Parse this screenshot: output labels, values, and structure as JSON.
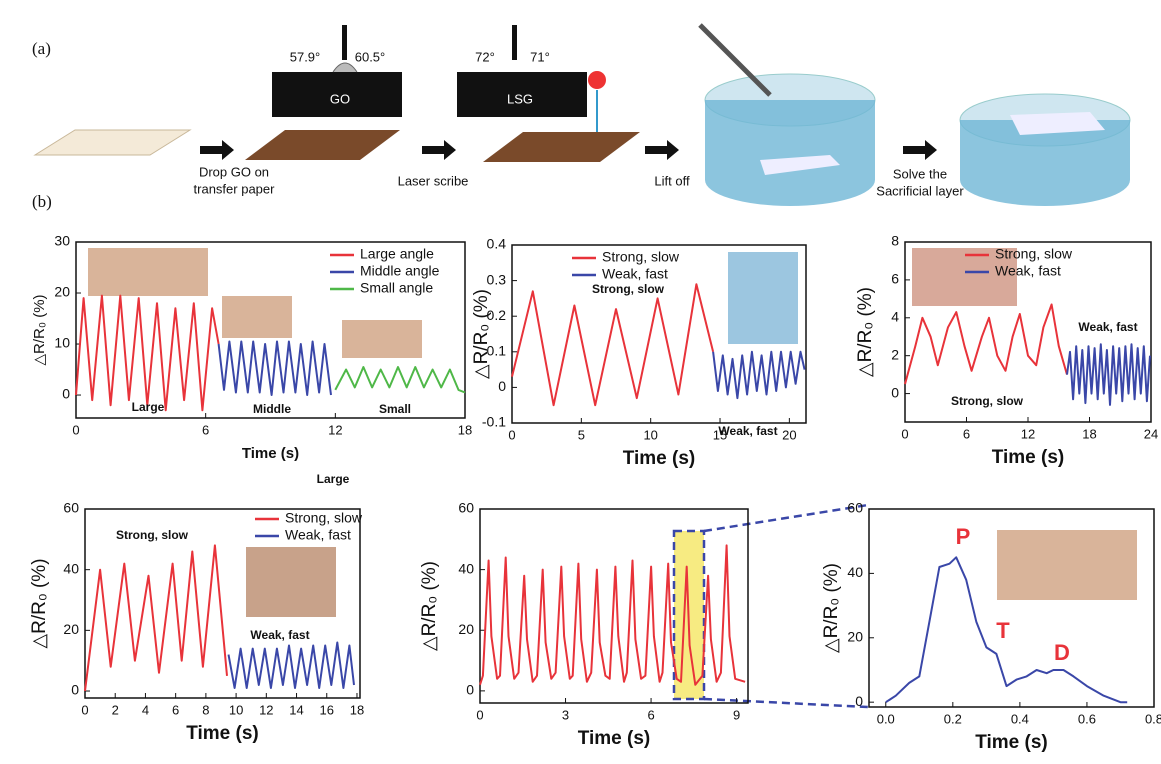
{
  "panel_a": {
    "label": "(a)",
    "angle_left_1": "57.9°",
    "angle_right_1": "60.5°",
    "block_1": "GO",
    "angle_left_2": "72°",
    "angle_right_2": "71°",
    "block_2": "LSG",
    "steps": [
      "Drop GO on",
      "transfer paper",
      "Laser scribe",
      "Lift off",
      "Solve the",
      "Sacrificial layer"
    ]
  },
  "panel_b": {
    "label": "(b)"
  },
  "chart_data": [
    {
      "type": "line",
      "ylabel": "△R/R₀ (%)",
      "xlabel": "Time (s)",
      "xlim": [
        0,
        18
      ],
      "xticks": [
        0,
        6,
        12,
        18
      ],
      "ylim": [
        -4.5,
        30
      ],
      "yticks": [
        0,
        10,
        20,
        30
      ],
      "annotations": [
        "Large",
        "Middle",
        "Small",
        "Large"
      ],
      "series": [
        {
          "name": "Large angle",
          "color": "#e8333a",
          "x": [
            0,
            0.35,
            0.75,
            1.2,
            1.6,
            2.05,
            2.45,
            2.9,
            3.3,
            3.75,
            4.15,
            4.6,
            5.0,
            5.45,
            5.85,
            6.3,
            6.6
          ],
          "values": [
            0,
            19,
            -1,
            19.5,
            -2,
            19.5,
            -1,
            19,
            -2,
            18,
            -3,
            17,
            -1,
            18,
            -3,
            17,
            10
          ]
        },
        {
          "name": "Middle angle",
          "color": "#3a47a8",
          "x": [
            6.6,
            6.85,
            7.1,
            7.4,
            7.65,
            7.95,
            8.2,
            8.5,
            8.75,
            9.05,
            9.3,
            9.6,
            9.85,
            10.15,
            10.4,
            10.7,
            10.95,
            11.25,
            11.5,
            11.8
          ],
          "values": [
            10,
            1,
            10.5,
            0.5,
            10.5,
            0.5,
            10.5,
            0.5,
            10,
            0,
            10.5,
            0.5,
            10.5,
            0.5,
            10,
            0,
            10.5,
            0.5,
            10,
            0
          ]
        },
        {
          "name": "Small angle",
          "color": "#4fb848",
          "x": [
            12,
            12.5,
            12.9,
            13.3,
            13.7,
            14.1,
            14.5,
            14.9,
            15.3,
            15.7,
            16.1,
            16.5,
            16.9,
            17.3,
            17.7,
            18
          ],
          "values": [
            1,
            5,
            1.5,
            5.5,
            1.5,
            5,
            1.5,
            5.5,
            1.5,
            5.5,
            1.5,
            5,
            1.5,
            5,
            1,
            0.5
          ]
        }
      ]
    },
    {
      "type": "line",
      "ylabel": "△R/R₀ (%)",
      "xlabel": "Time (s)",
      "xlim": [
        0,
        21.2
      ],
      "xticks": [
        0,
        5,
        10,
        15,
        20
      ],
      "ylim": [
        -0.1,
        0.4
      ],
      "yticks": [
        -0.1,
        0,
        0.1,
        0.2,
        0.3,
        0.4
      ],
      "annotations": [
        "Strong, slow",
        "Weak, fast"
      ],
      "series": [
        {
          "name": "Strong, slow",
          "color": "#e8333a",
          "x": [
            0,
            1.5,
            3,
            4.5,
            6,
            7.5,
            9,
            10.5,
            12,
            13.3,
            14.5
          ],
          "values": [
            0.03,
            0.27,
            -0.05,
            0.23,
            -0.05,
            0.22,
            -0.03,
            0.25,
            -0.02,
            0.29,
            0.1
          ]
        },
        {
          "name": "Weak, fast",
          "color": "#3a47a8",
          "x": [
            14.5,
            14.85,
            15.2,
            15.55,
            15.9,
            16.25,
            16.6,
            16.95,
            17.3,
            17.65,
            18.0,
            18.35,
            18.7,
            19.05,
            19.4,
            19.75,
            20.1,
            20.45,
            20.8,
            21.1
          ],
          "values": [
            0.1,
            -0.01,
            0.09,
            -0.02,
            0.08,
            -0.03,
            0.09,
            -0.02,
            0.1,
            -0.01,
            0.09,
            -0.02,
            0.1,
            -0.01,
            0.1,
            0.0,
            0.1,
            0.01,
            0.1,
            0.05
          ]
        }
      ]
    },
    {
      "type": "line",
      "ylabel": "△R/R₀ (%)",
      "xlabel": "Time (s)",
      "xlim": [
        0,
        24
      ],
      "xticks": [
        0,
        6,
        12,
        18,
        24
      ],
      "ylim": [
        -1.5,
        8
      ],
      "yticks": [
        0,
        2,
        4,
        6,
        8
      ],
      "annotations": [
        "Weak, fast",
        "Strong, slow"
      ],
      "series": [
        {
          "name": "Strong, slow",
          "color": "#e8333a",
          "x": [
            0,
            1,
            1.7,
            2.5,
            3.2,
            4.2,
            5,
            5.8,
            6.5,
            7.5,
            8.2,
            9,
            9.8,
            10.5,
            11.2,
            12,
            12.8,
            13.5,
            14.3,
            15,
            15.8
          ],
          "values": [
            0.5,
            2.5,
            4,
            3,
            1.5,
            3.5,
            4.3,
            2.5,
            1.2,
            3,
            4,
            2,
            1.2,
            3,
            4.2,
            2,
            1.5,
            3.5,
            4.7,
            2.5,
            1
          ]
        },
        {
          "name": "Weak, fast",
          "color": "#3a47a8",
          "x": [
            15.8,
            16.1,
            16.4,
            16.7,
            17,
            17.3,
            17.6,
            17.9,
            18.2,
            18.5,
            18.8,
            19.1,
            19.4,
            19.7,
            20,
            20.3,
            20.6,
            20.9,
            21.2,
            21.5,
            21.8,
            22.1,
            22.4,
            22.7,
            23,
            23.3,
            23.6,
            23.9
          ],
          "values": [
            1,
            2.2,
            -0.3,
            2.5,
            0,
            2.3,
            -0.5,
            2.5,
            0,
            2.4,
            -0.3,
            2.6,
            0,
            2.3,
            -0.6,
            2.5,
            0,
            2.4,
            -0.4,
            2.5,
            0,
            2.6,
            -0.3,
            2.4,
            0,
            2.5,
            -0.4,
            2
          ]
        }
      ]
    },
    {
      "type": "line",
      "ylabel": "△R/R₀ (%)",
      "xlabel": "Time (s)",
      "xlim": [
        0,
        18.2
      ],
      "xticks": [
        0,
        2,
        4,
        6,
        8,
        10,
        12,
        14,
        16,
        18
      ],
      "ylim": [
        -2.3,
        60
      ],
      "yticks": [
        0,
        20,
        40,
        60
      ],
      "annotations": [
        "Strong, slow",
        "Weak, fast"
      ],
      "series": [
        {
          "name": "Strong, slow",
          "color": "#e8333a",
          "x": [
            0,
            1,
            1.7,
            2.6,
            3.3,
            4.2,
            4.9,
            5.8,
            6.4,
            7.1,
            7.8,
            8.6,
            9.4
          ],
          "values": [
            0,
            40,
            8,
            42,
            10,
            38,
            6,
            42,
            10,
            46,
            8,
            48,
            5
          ]
        },
        {
          "name": "Weak, fast",
          "color": "#3a47a8",
          "x": [
            9.5,
            9.9,
            10.3,
            10.7,
            11.1,
            11.5,
            11.9,
            12.3,
            12.7,
            13.1,
            13.5,
            13.9,
            14.3,
            14.7,
            15.1,
            15.5,
            15.9,
            16.3,
            16.7,
            17.1,
            17.5,
            17.8
          ],
          "values": [
            12,
            1,
            14,
            1,
            14,
            2,
            14,
            1,
            14,
            2,
            15,
            1,
            14,
            2,
            15,
            1,
            15,
            2,
            16,
            1,
            15,
            2
          ]
        }
      ]
    },
    {
      "type": "line",
      "ylabel": "△R/R₀ (%)",
      "xlabel": "Time (s)",
      "xlim": [
        0,
        9.4
      ],
      "xticks": [
        0,
        3,
        6,
        9
      ],
      "ylim": [
        -4,
        60
      ],
      "yticks": [
        0,
        20,
        40,
        60
      ],
      "series": [
        {
          "color": "#e8333a",
          "x": [
            0,
            0.1,
            0.3,
            0.4,
            0.6,
            0.7,
            0.9,
            1.0,
            1.2,
            1.35,
            1.55,
            1.65,
            1.85,
            2.0,
            2.2,
            2.3,
            2.5,
            2.65,
            2.85,
            2.95,
            3.15,
            3.25,
            3.45,
            3.55,
            3.75,
            3.9,
            4.1,
            4.2,
            4.4,
            4.55,
            4.75,
            4.85,
            5.05,
            5.15,
            5.35,
            5.45,
            5.65,
            5.8,
            6.0,
            6.1,
            6.3,
            6.4,
            6.6,
            6.7,
            6.9,
            7.05,
            7.25,
            7.35,
            7.55,
            7.8,
            8.0,
            8.1,
            8.3,
            8.45,
            8.65,
            8.75,
            8.95,
            9.3
          ],
          "values": [
            2,
            5,
            43,
            18,
            4,
            5,
            44,
            18,
            4,
            6,
            38,
            17,
            3,
            5,
            40,
            16,
            4,
            6,
            41,
            18,
            4,
            5,
            42,
            17,
            3,
            6,
            40,
            16,
            5,
            4,
            41,
            18,
            3,
            6,
            43,
            17,
            4,
            5,
            41,
            18,
            3,
            6,
            42,
            16,
            4,
            3,
            41,
            15,
            2,
            5,
            38,
            17,
            3,
            6,
            48,
            18,
            4,
            3
          ]
        }
      ]
    },
    {
      "type": "line",
      "ylabel": "△R/R₀ (%)",
      "xlabel": "Time (s)",
      "xlim": [
        -0.05,
        0.8
      ],
      "xticks": [
        {
          "value": 0,
          "label": "0.0"
        },
        0.2,
        0.4,
        0.6,
        0.8
      ],
      "ylim": [
        -1.5,
        60
      ],
      "yticks": [
        0,
        20,
        40,
        60
      ],
      "annotations": [
        "P",
        "T",
        "D"
      ],
      "series": [
        {
          "color": "#3a47a8",
          "x": [
            0,
            0.03,
            0.07,
            0.1,
            0.13,
            0.16,
            0.19,
            0.21,
            0.24,
            0.27,
            0.3,
            0.33,
            0.36,
            0.39,
            0.42,
            0.45,
            0.48,
            0.5,
            0.53,
            0.56,
            0.6,
            0.65,
            0.7,
            0.72
          ],
          "values": [
            0,
            2,
            6,
            8,
            25,
            42,
            43,
            45,
            38,
            25,
            17,
            15,
            5,
            7,
            8,
            10,
            9,
            10,
            10,
            8,
            5,
            2,
            0,
            0
          ]
        }
      ]
    }
  ]
}
